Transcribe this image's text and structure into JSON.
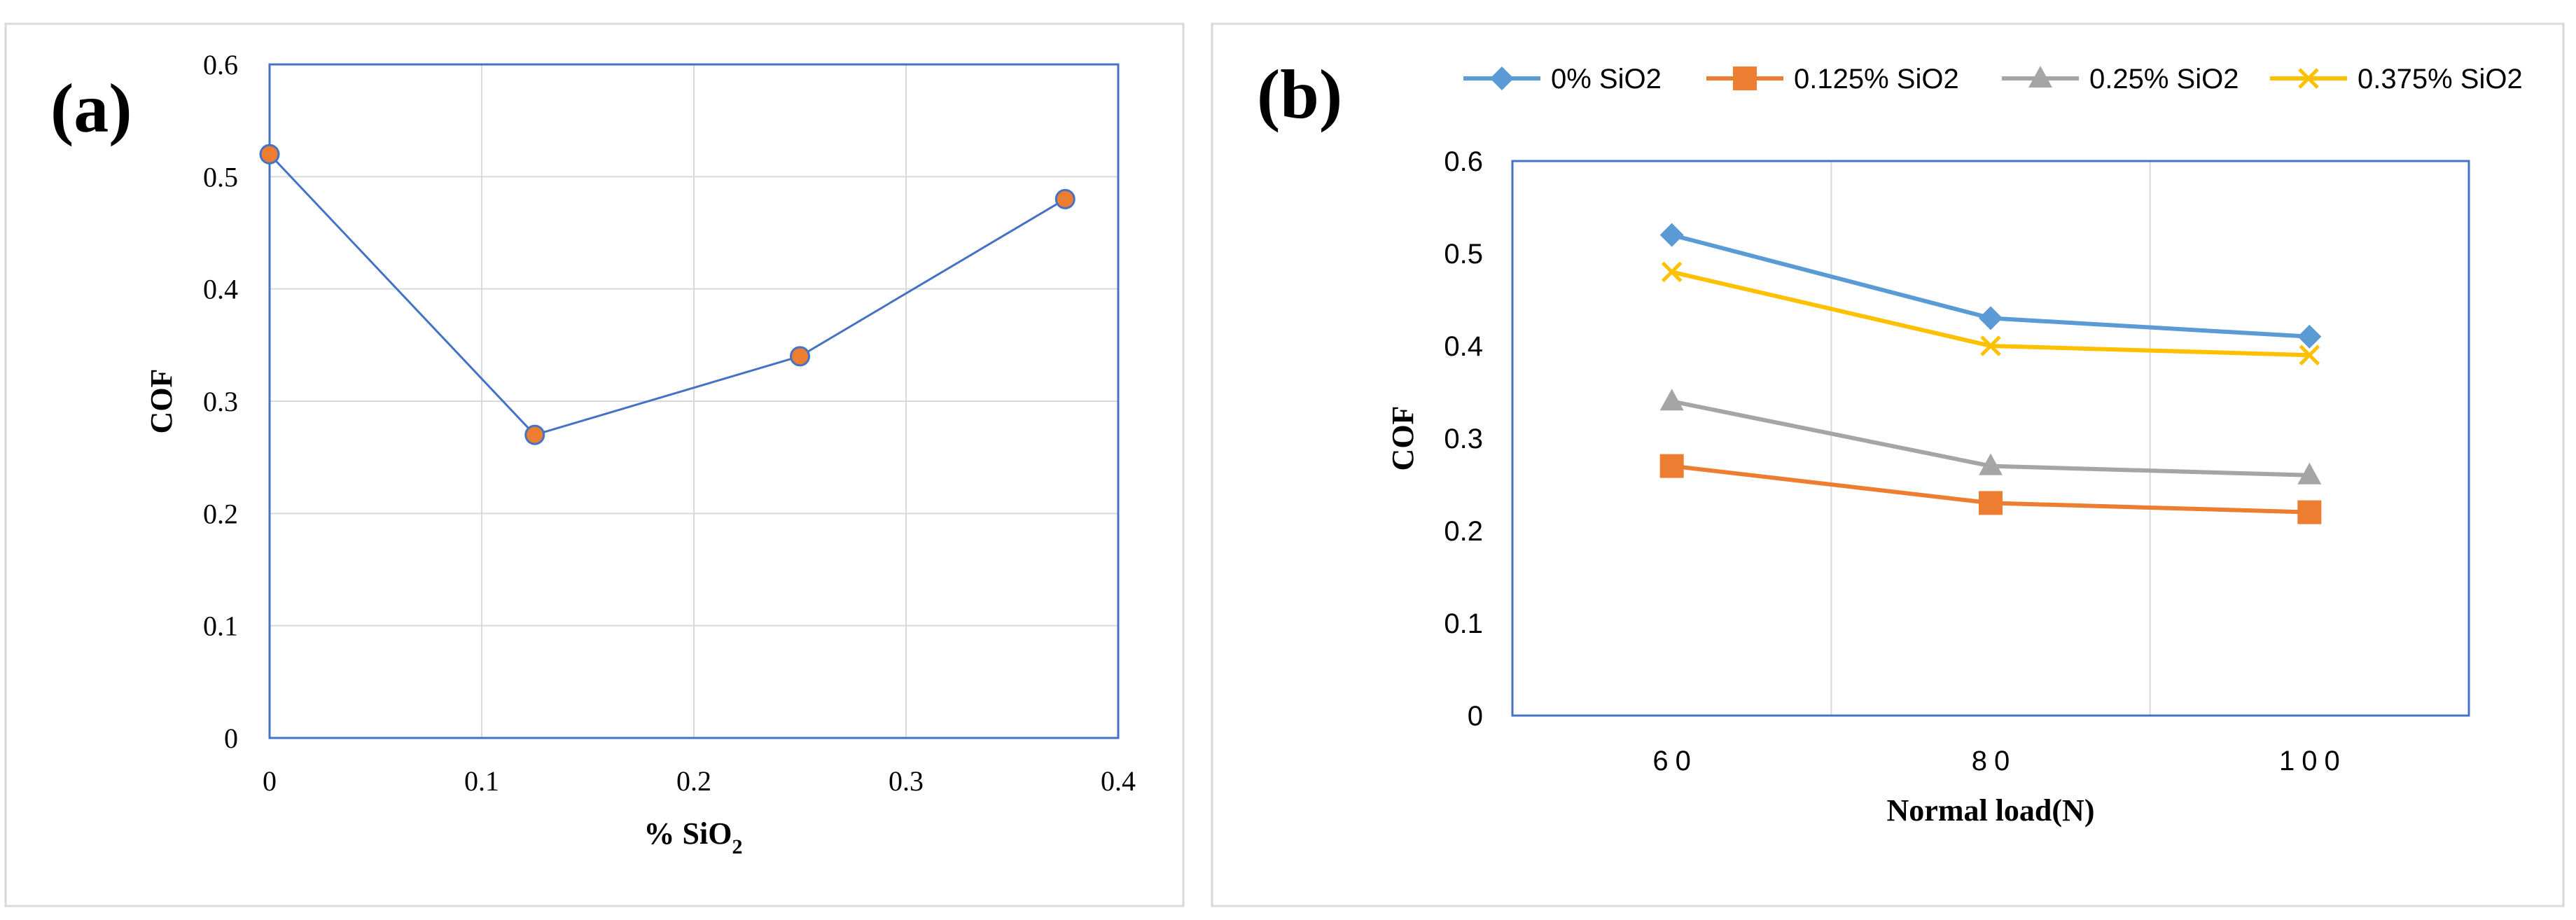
{
  "chart_data": [
    {
      "panel": "(a)",
      "type": "line",
      "xlabel": "% SiO",
      "xlabel_subscript": "2",
      "ylabel": "COF",
      "xlim": [
        0,
        0.4
      ],
      "ylim": [
        0,
        0.6
      ],
      "x_ticks": [
        "0",
        "0.1",
        "0.2",
        "0.3",
        "0.4"
      ],
      "y_ticks": [
        "0",
        "0.1",
        "0.2",
        "0.3",
        "0.4",
        "0.5",
        "0.6"
      ],
      "x": [
        0,
        0.125,
        0.25,
        0.375
      ],
      "values": [
        0.52,
        0.27,
        0.34,
        0.48
      ],
      "line_color": "#4472c4",
      "marker_color": "#ed7d31",
      "grid": true
    },
    {
      "panel": "(b)",
      "type": "line",
      "xlabel": "Normal load(N)",
      "ylabel": "COF",
      "categories": [
        "60",
        "80",
        "100"
      ],
      "xlim": [
        50,
        110
      ],
      "ylim": [
        0,
        0.6
      ],
      "y_ticks": [
        "0",
        "0.1",
        "0.2",
        "0.3",
        "0.4",
        "0.5",
        "0.6"
      ],
      "legend_position": "top",
      "grid": true,
      "series": [
        {
          "name": "0% SiO2",
          "values": [
            0.52,
            0.43,
            0.41
          ],
          "color": "#5b9bd5",
          "marker": "diamond"
        },
        {
          "name": "0.125%  SiO2",
          "values": [
            0.27,
            0.23,
            0.22
          ],
          "color": "#ed7d31",
          "marker": "square"
        },
        {
          "name": "0.25% SiO2",
          "values": [
            0.34,
            0.27,
            0.26
          ],
          "color": "#a5a5a5",
          "marker": "triangle"
        },
        {
          "name": "0.375% SiO2",
          "values": [
            0.48,
            0.4,
            0.39
          ],
          "color": "#ffc000",
          "marker": "x"
        }
      ]
    }
  ]
}
